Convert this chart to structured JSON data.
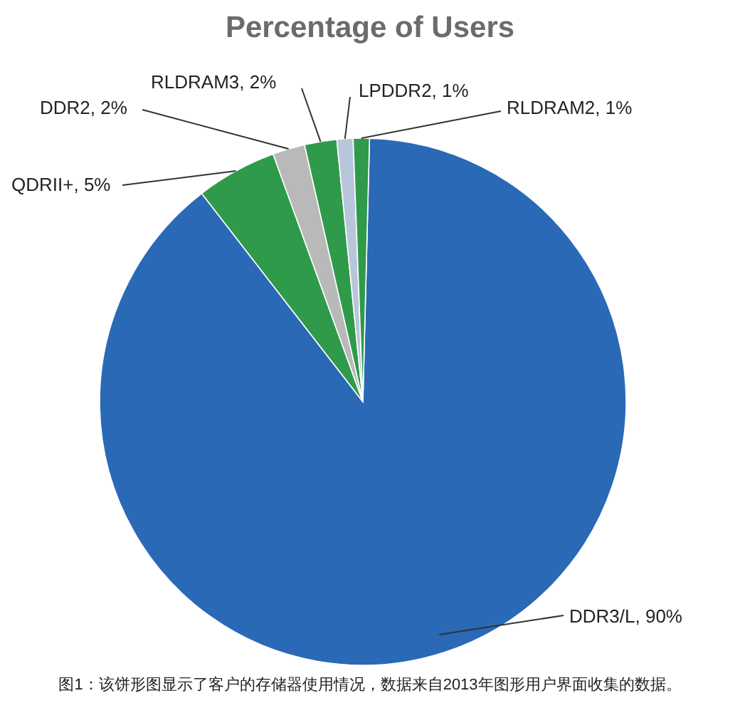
{
  "chart_data": {
    "type": "pie",
    "title": "Percentage of Users",
    "categories": [
      "DDR3/L",
      "QDRII+",
      "DDR2",
      "RLDRAM3",
      "LPDDR2",
      "RLDRAM2"
    ],
    "values": [
      90,
      5,
      2,
      2,
      1,
      1
    ],
    "colors": [
      "#2a69b6",
      "#2f9a4a",
      "#b9b9b9",
      "#2f9a4a",
      "#b7c6da",
      "#2f9a4a"
    ],
    "value_labels": [
      ", 90%",
      ", 5%",
      ", 2%",
      ", 2%",
      ", 1%",
      ", 1%"
    ],
    "annotations": [
      "图1：该饼形图显示了客户的存储器使用情况，数据来自2013年图形用户界面收集的数据。"
    ]
  }
}
